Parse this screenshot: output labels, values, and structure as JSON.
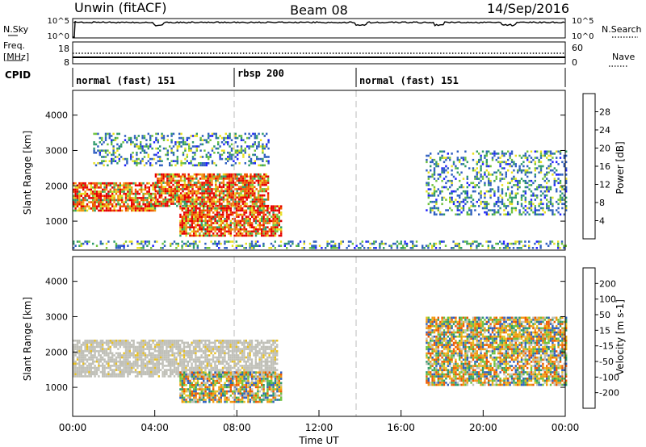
{
  "header": {
    "station": "Unwin (fitACF)",
    "beam": "Beam 08",
    "date": "14/Sep/2016"
  },
  "panels": {
    "nsky": {
      "label": "N.Sky",
      "ticks_left": [
        "10^5",
        "10^0"
      ],
      "ticks_right": [
        "10^5",
        "10^0"
      ],
      "right_label": "N.Search"
    },
    "freq": {
      "label_line1": "Freq.",
      "label_line2": "[MHz]",
      "ticks_left": [
        "18",
        "8"
      ],
      "ticks_right": [
        "60",
        "0"
      ],
      "right_label": "Nave"
    },
    "cpid": {
      "label": "CPID",
      "segments": [
        {
          "name": "normal (fast) 151",
          "start_hour": 0
        },
        {
          "name": "rbsp 200",
          "start_hour": 8
        },
        {
          "name": "normal (fast) 151",
          "start_hour": 14
        }
      ]
    }
  },
  "chart_data": [
    {
      "type": "heatmap",
      "name": "power",
      "xlabel": "",
      "ylabel": "Slant Range [km]",
      "xlim": [
        0,
        24
      ],
      "ylim": [
        180,
        4700
      ],
      "yticks": [
        "1000",
        "2000",
        "3000",
        "4000"
      ],
      "colorbar_label": "Power [dB]",
      "colorbar_ticks": [
        "4",
        "8",
        "12",
        "16",
        "20",
        "24",
        "28"
      ],
      "colorbar_range": [
        0,
        30
      ],
      "colors": [
        "#1f1fff",
        "#2f5fc0",
        "#2e9a6a",
        "#6fc23c",
        "#e8e020",
        "#f09a10",
        "#ee5a00",
        "#e60000"
      ],
      "echo_regions": [
        {
          "t": [
            0,
            4
          ],
          "range": [
            1300,
            2100
          ],
          "level": "high"
        },
        {
          "t": [
            4,
            9.5
          ],
          "range": [
            1450,
            2350
          ],
          "level": "high"
        },
        {
          "t": [
            5.2,
            10.2
          ],
          "range": [
            600,
            1450
          ],
          "level": "high"
        },
        {
          "t": [
            1,
            9.5
          ],
          "range": [
            2600,
            3500
          ],
          "level": "low"
        },
        {
          "t": [
            17.2,
            24
          ],
          "range": [
            1200,
            3000
          ],
          "level": "low"
        },
        {
          "t": [
            0,
            24
          ],
          "range": [
            250,
            450
          ],
          "level": "low"
        }
      ]
    },
    {
      "type": "heatmap",
      "name": "velocity",
      "xlabel": "Time UT",
      "ylabel": "Slant Range [km]",
      "xlim": [
        0,
        24
      ],
      "ylim": [
        180,
        4700
      ],
      "yticks": [
        "1000",
        "2000",
        "3000",
        "4000"
      ],
      "xticks": [
        "00:00",
        "04:00",
        "08:00",
        "12:00",
        "16:00",
        "20:00",
        "00:00"
      ],
      "colorbar_label": "Velocity [m s-1]",
      "colorbar_ticks": [
        "-200",
        "-100",
        "-50",
        "-15",
        "15",
        "50",
        "100",
        "200"
      ],
      "colors": [
        "#e60000",
        "#ee5a00",
        "#f09a10",
        "#e8c020",
        "#c0c0b8",
        "#6fc23c",
        "#2e9a6a",
        "#2f5fc0",
        "#1f1fff"
      ],
      "echo_regions": [
        {
          "t": [
            0,
            10
          ],
          "range": [
            1300,
            2350
          ],
          "velocity": "ground scatter"
        },
        {
          "t": [
            5.2,
            10.2
          ],
          "range": [
            600,
            1450
          ],
          "velocity": "mixed"
        },
        {
          "t": [
            17.2,
            24
          ],
          "range": [
            1100,
            3000
          ],
          "velocity": "mixed"
        }
      ]
    }
  ]
}
